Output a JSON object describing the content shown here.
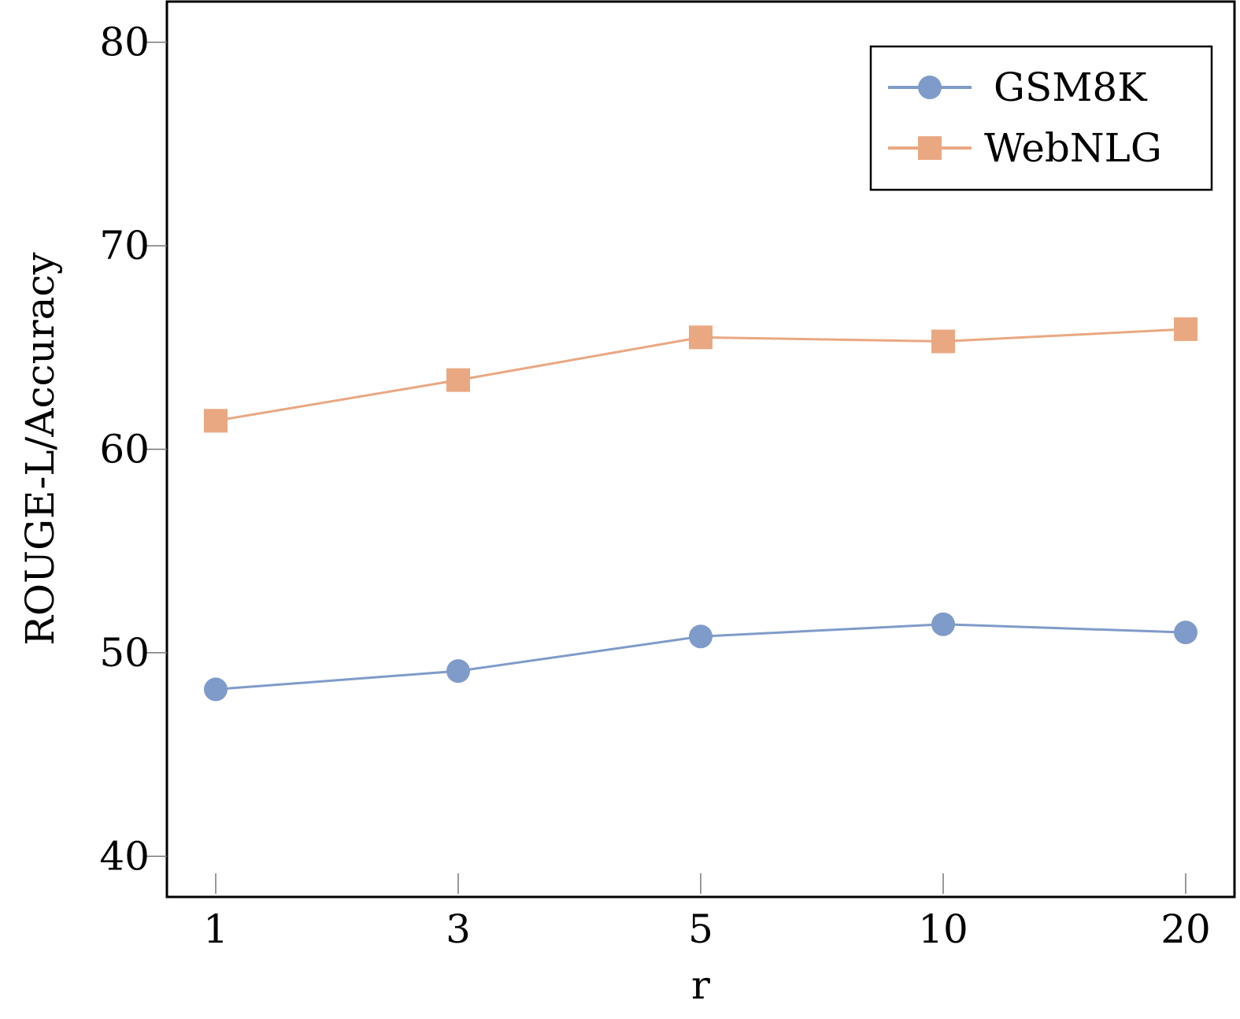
{
  "chart_data": {
    "type": "line",
    "xlabel": "r",
    "ylabel": "ROUGE-L/Accuracy",
    "categories": [
      "1",
      "3",
      "5",
      "10",
      "20"
    ],
    "ylim": [
      38,
      82
    ],
    "yticks": [
      40,
      50,
      60,
      70,
      80
    ],
    "grid": false,
    "legend": "top-right",
    "series": [
      {
        "name": "GSM8K",
        "values": [
          48.2,
          49.1,
          50.8,
          51.4,
          51.0
        ],
        "color": "#7f9bc9",
        "marker": "circle"
      },
      {
        "name": "WebNLG",
        "values": [
          61.4,
          63.4,
          65.5,
          65.3,
          65.9
        ],
        "color": "#e9a882",
        "marker": "square"
      }
    ]
  }
}
